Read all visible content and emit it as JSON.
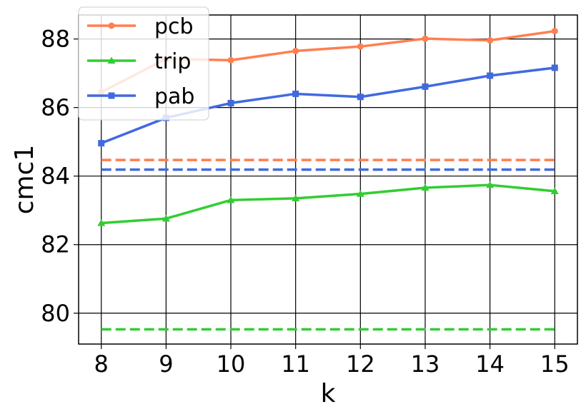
{
  "chart_data": {
    "type": "line",
    "title": "",
    "xlabel": "k",
    "ylabel": "cmc1",
    "x": [
      8,
      9,
      10,
      11,
      12,
      13,
      14,
      15
    ],
    "xlim": [
      7.65,
      15.35
    ],
    "ylim": [
      79.1,
      88.7
    ],
    "xticks": [
      "8",
      "9",
      "10",
      "11",
      "12",
      "13",
      "14",
      "15"
    ],
    "yticks": [
      "80",
      "82",
      "84",
      "86",
      "88"
    ],
    "ytick_values": [
      80,
      82,
      84,
      86,
      88
    ],
    "grid": true,
    "legend_position": "top-left",
    "series": [
      {
        "name": "pcb",
        "color": "#FF7F50",
        "marker": "circle",
        "values": [
          86.45,
          87.42,
          87.38,
          87.65,
          87.78,
          88.01,
          87.96,
          88.23
        ],
        "baseline": 84.47
      },
      {
        "name": "trip",
        "color": "#32CD32",
        "marker": "triangle",
        "values": [
          82.63,
          82.76,
          83.3,
          83.35,
          83.48,
          83.66,
          83.74,
          83.56
        ],
        "baseline": 79.53
      },
      {
        "name": "pab",
        "color": "#4169E1",
        "marker": "square",
        "values": [
          84.96,
          85.7,
          86.13,
          86.4,
          86.31,
          86.61,
          86.93,
          87.16
        ],
        "baseline": 84.19
      }
    ]
  }
}
